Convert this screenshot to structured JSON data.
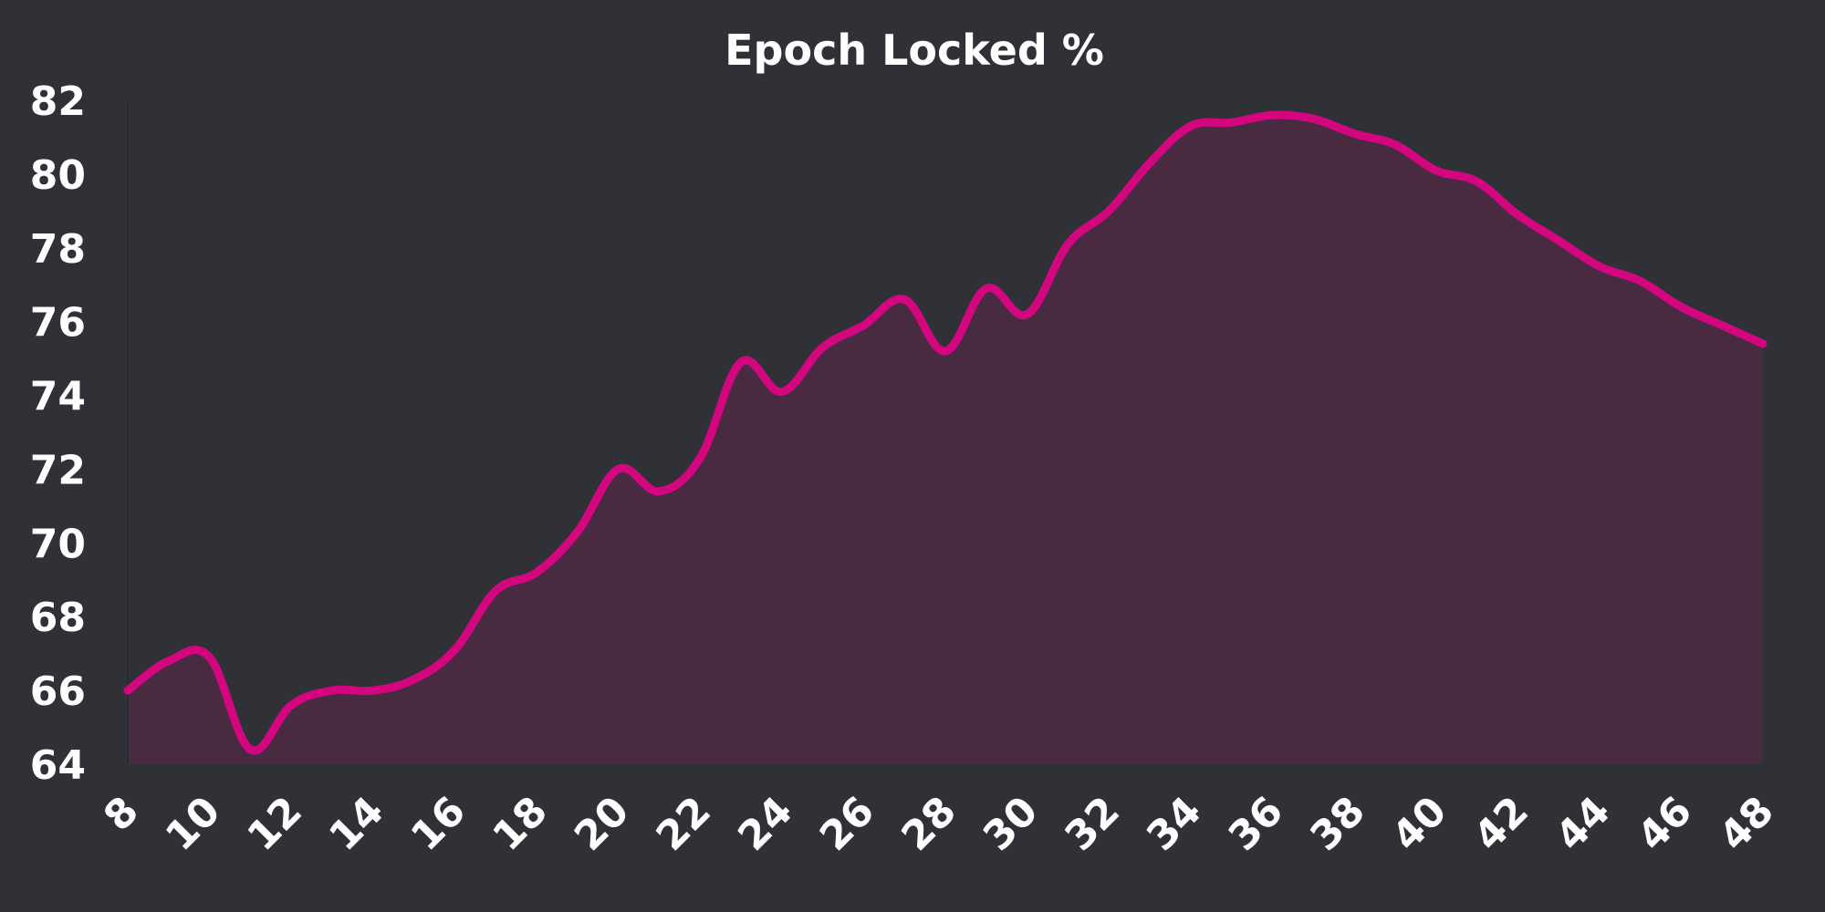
{
  "chart_data": {
    "type": "area",
    "title": "Epoch Locked %",
    "xlabel": "",
    "ylabel": "",
    "x": [
      8,
      9,
      10,
      11,
      12,
      13,
      14,
      15,
      16,
      17,
      18,
      19,
      20,
      21,
      22,
      23,
      24,
      25,
      26,
      27,
      28,
      29,
      30,
      31,
      32,
      33,
      34,
      35,
      36,
      37,
      38,
      39,
      40,
      41,
      42,
      43,
      44,
      45,
      46,
      47,
      48
    ],
    "series": [
      {
        "values": [
          66.0,
          66.8,
          66.9,
          64.4,
          65.6,
          66.0,
          66.0,
          66.3,
          67.1,
          68.7,
          69.2,
          70.3,
          72.0,
          71.4,
          72.3,
          74.9,
          74.1,
          75.3,
          75.9,
          76.6,
          75.2,
          76.9,
          76.2,
          78.1,
          79.0,
          80.3,
          81.3,
          81.4,
          81.6,
          81.5,
          81.1,
          80.8,
          80.1,
          79.8,
          78.9,
          78.2,
          77.5,
          77.1,
          76.4,
          75.9,
          75.4
        ],
        "color": "#d3067f"
      }
    ],
    "fill_color": "#482b41",
    "xlim": [
      8,
      48
    ],
    "ylim": [
      64,
      82
    ],
    "xticks": [
      8,
      10,
      12,
      14,
      16,
      18,
      20,
      22,
      24,
      26,
      28,
      30,
      32,
      34,
      36,
      38,
      40,
      42,
      44,
      46,
      48
    ],
    "yticks": [
      64,
      66,
      68,
      70,
      72,
      74,
      76,
      78,
      80,
      82
    ],
    "grid": false,
    "legend": "none",
    "background": "#303136"
  }
}
